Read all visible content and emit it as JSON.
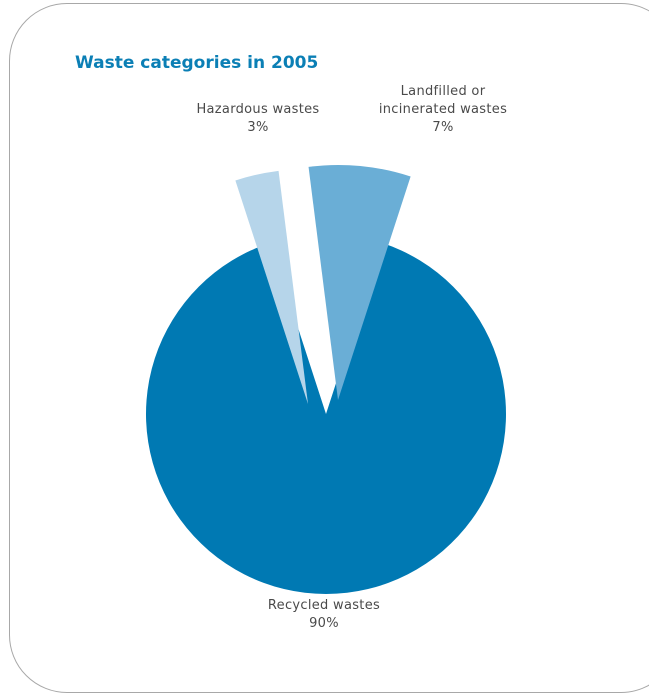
{
  "chart_data": {
    "type": "pie",
    "title": "Waste categories in 2005",
    "slices": [
      {
        "label_lines": [
          "Recycled wastes"
        ],
        "value_label": "90%",
        "value": 90,
        "color": "#0079b3",
        "exploded": false
      },
      {
        "label_lines": [
          "Hazardous wastes"
        ],
        "value_label": "3%",
        "value": 3,
        "color": "#b6d5ea",
        "exploded": true
      },
      {
        "label_lines": [
          "Landfilled or",
          "incinerated wastes"
        ],
        "value_label": "7%",
        "value": 7,
        "color": "#6aaed6",
        "exploded": true
      }
    ]
  }
}
